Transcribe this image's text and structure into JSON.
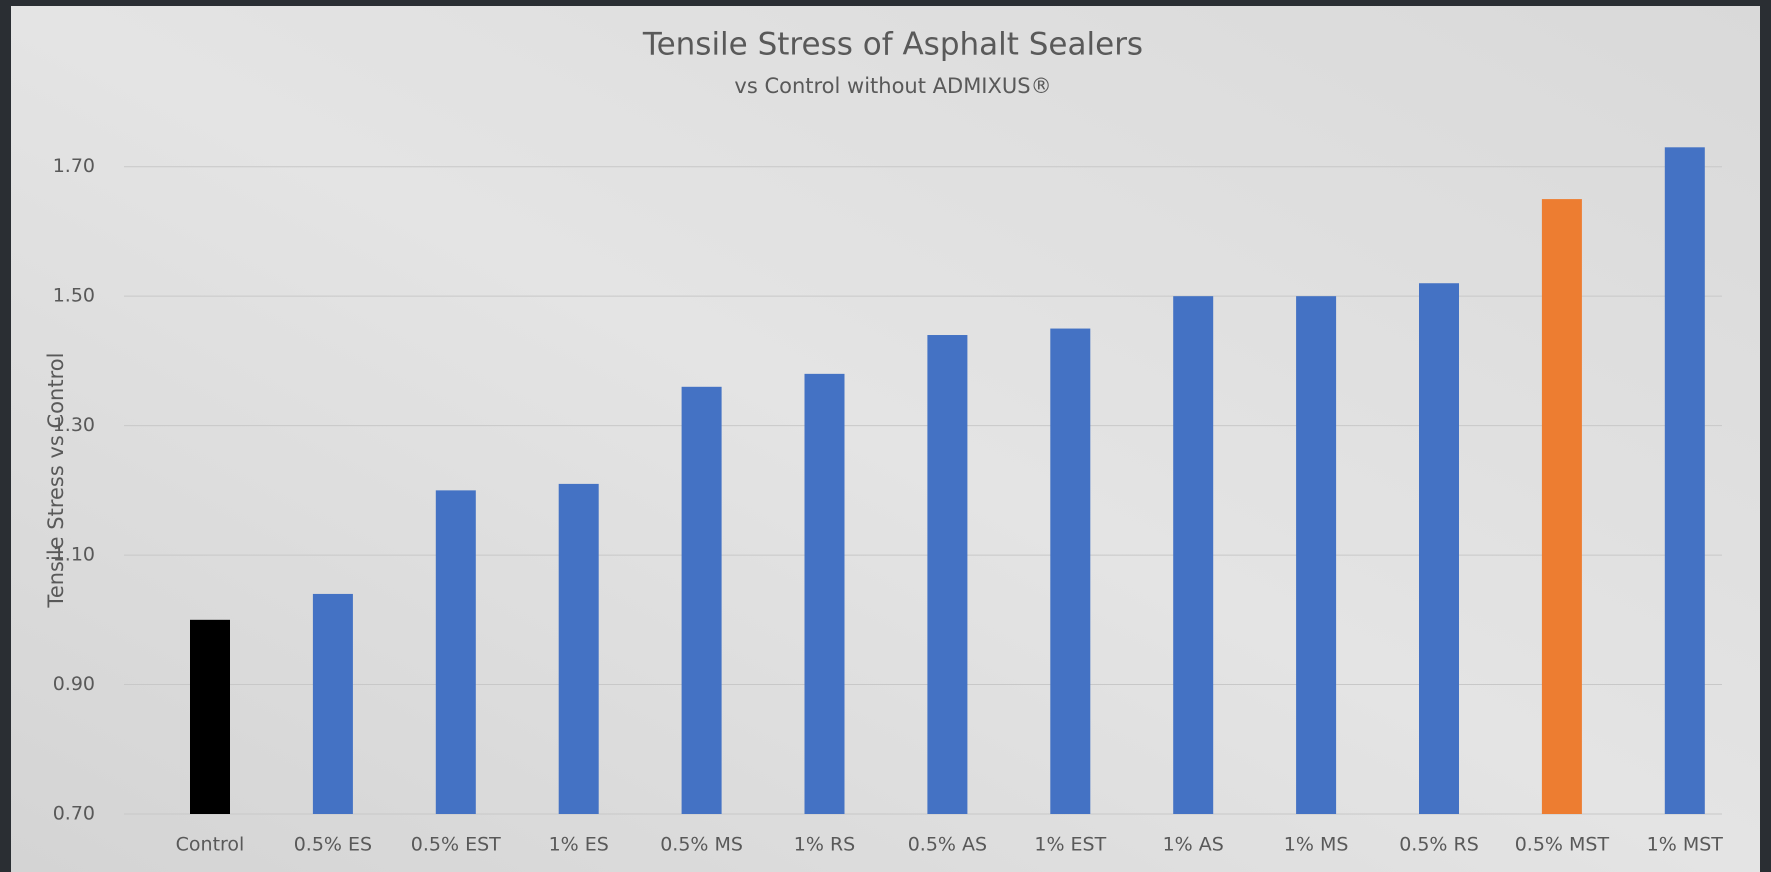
{
  "chart_data": {
    "type": "bar",
    "title": "Tensile Stress of Asphalt Sealers",
    "subtitle": "vs Control without ADMIXUS®",
    "y_label": "Tensile Stress vs Control",
    "categories": [
      "Control",
      "0.5% ES",
      "0.5% EST",
      "1% ES",
      "0.5% MS",
      "1% RS",
      "0.5% AS",
      "1% EST",
      "1% AS",
      "1% MS",
      "0.5% RS",
      "0.5% MST",
      "1% MST"
    ],
    "values": [
      1.0,
      1.04,
      1.2,
      1.21,
      1.36,
      1.38,
      1.44,
      1.45,
      1.5,
      1.5,
      1.52,
      1.65,
      1.73
    ],
    "colors": [
      "#000000",
      "#4472c4",
      "#4472c4",
      "#4472c4",
      "#4472c4",
      "#4472c4",
      "#4472c4",
      "#4472c4",
      "#4472c4",
      "#4472c4",
      "#4472c4",
      "#ed7d31",
      "#4472c4"
    ],
    "ylim": [
      0.7,
      1.8
    ],
    "yticks": [
      {
        "value": 0.7,
        "label": "0.70"
      },
      {
        "value": 0.9,
        "label": "0.90"
      },
      {
        "value": 1.1,
        "label": "1.10"
      },
      {
        "value": 1.3,
        "label": "1.30"
      },
      {
        "value": 1.5,
        "label": "1.50"
      },
      {
        "value": 1.7,
        "label": "1.70"
      }
    ],
    "grid": true
  }
}
